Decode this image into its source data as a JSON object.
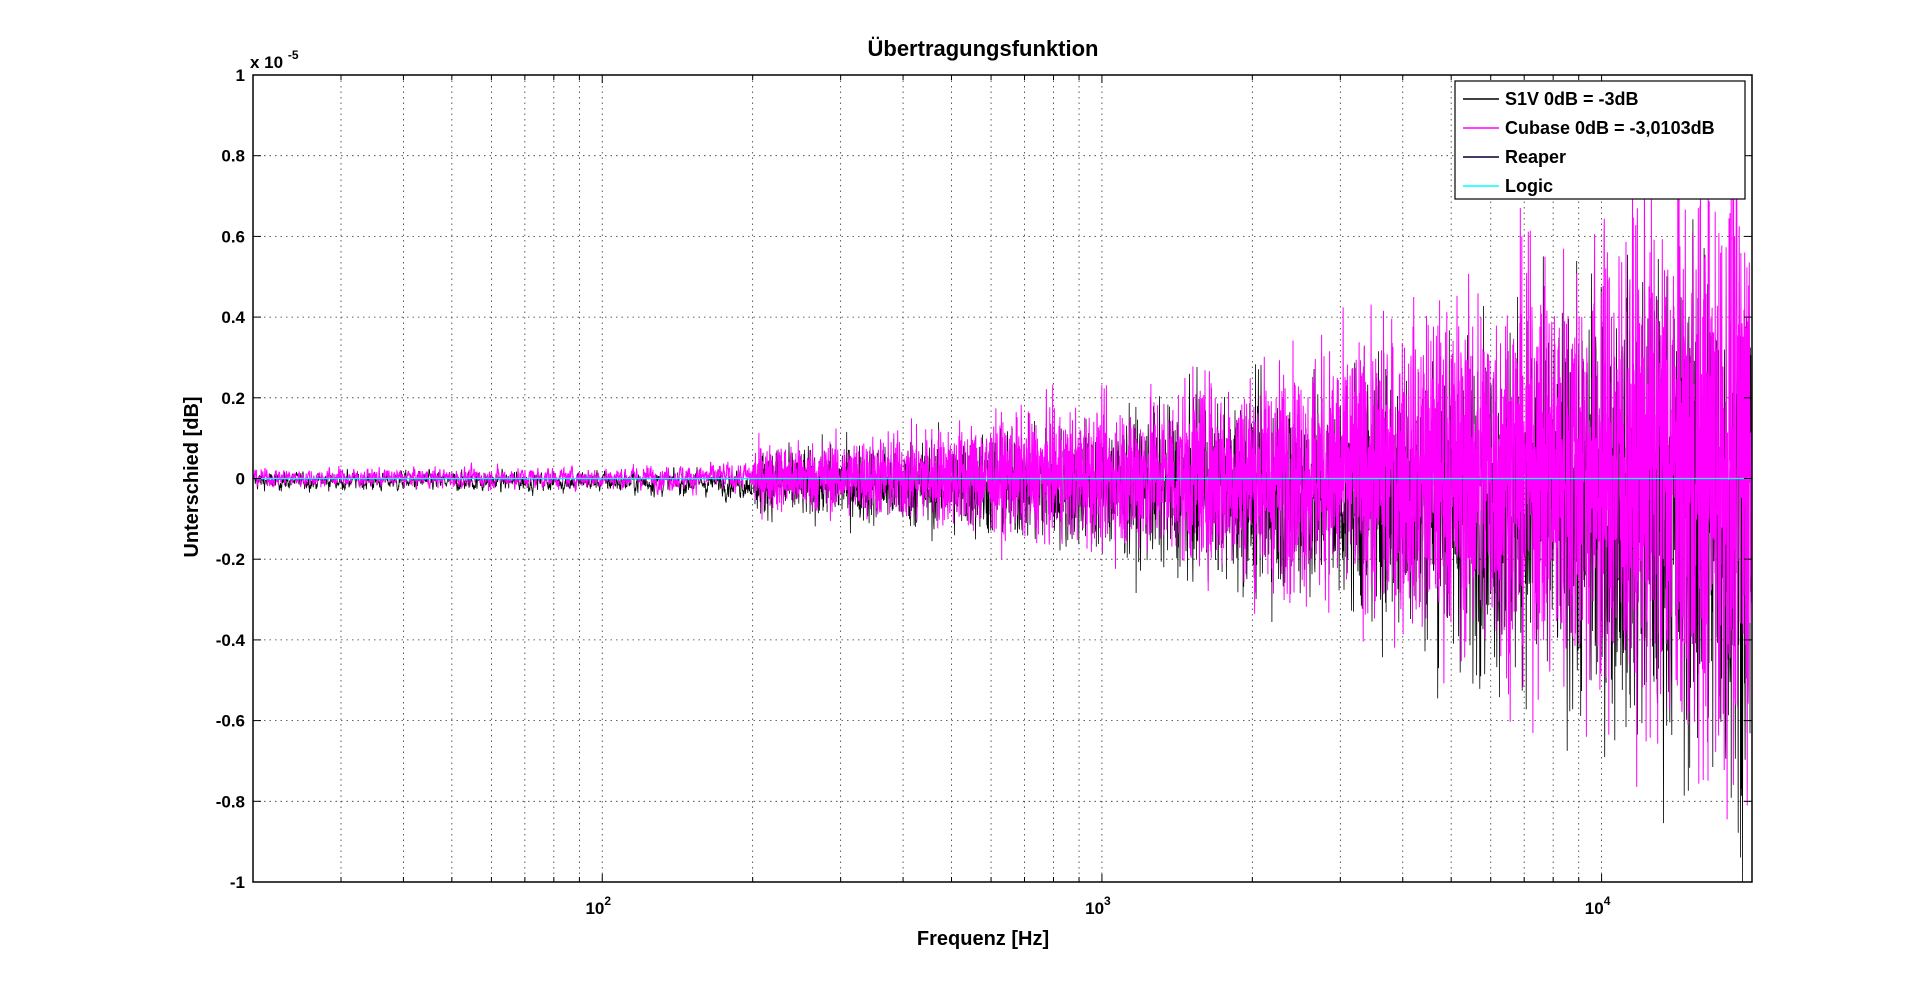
{
  "chart_data": {
    "type": "line",
    "title": "Übertragungsfunktion",
    "xlabel": "Frequenz [Hz]",
    "ylabel": "Unterschied [dB]",
    "y_exponent_label": "x 10",
    "y_exponent_power": "-5",
    "x_scale": "log",
    "xlim": [
      20,
      20000
    ],
    "ylim": [
      -1e-05,
      1e-05
    ],
    "x_ticks": [
      {
        "value": 100,
        "base": "10",
        "power": "2"
      },
      {
        "value": 1000,
        "base": "10",
        "power": "3"
      },
      {
        "value": 10000,
        "base": "10",
        "power": "4"
      }
    ],
    "y_tick_values": [
      -1,
      -0.8,
      -0.6,
      -0.4,
      -0.2,
      0,
      0.2,
      0.4,
      0.6,
      0.8,
      1
    ],
    "y_tick_labels": [
      "-1",
      "-0.8",
      "-0.6",
      "-0.4",
      "-0.2",
      "0",
      "0.2",
      "0.4",
      "0.6",
      "0.8",
      "1"
    ],
    "grid": true,
    "legend_position": "top-right",
    "series": [
      {
        "name": "S1V 0dB = -3dB",
        "color": "#000000",
        "description_envelope": {
          "x": [
            20,
            100,
            300,
            1000,
            3000,
            10000,
            20000
          ],
          "amplitude": [
            0.04,
            0.05,
            0.08,
            0.14,
            0.25,
            0.45,
            0.65
          ]
        }
      },
      {
        "name": "Cubase 0dB = -3,0103dB",
        "color": "#ff00ff",
        "description_envelope": {
          "x": [
            20,
            100,
            300,
            1000,
            3000,
            10000,
            20000
          ],
          "amplitude": [
            0.04,
            0.05,
            0.08,
            0.15,
            0.27,
            0.5,
            0.7
          ]
        }
      },
      {
        "name": "Reaper",
        "color": "#000033",
        "description_envelope": {
          "x": [
            20,
            20000
          ],
          "amplitude": [
            0,
            0
          ]
        }
      },
      {
        "name": "Logic",
        "color": "#00ffff",
        "values": {
          "x": [
            20,
            20000
          ],
          "y": [
            0,
            0
          ]
        }
      }
    ]
  }
}
